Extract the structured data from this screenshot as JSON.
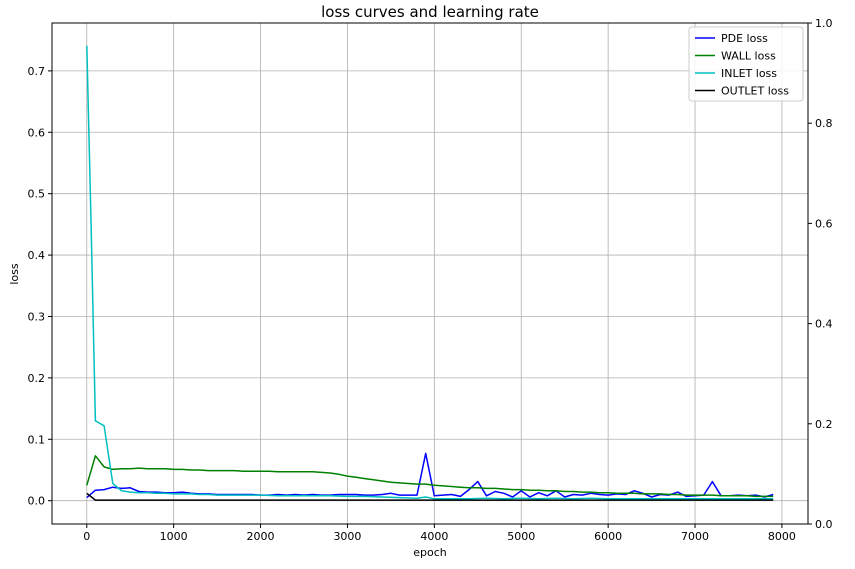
{
  "chart_data": {
    "type": "line",
    "title": "loss curves and learning rate",
    "xlabel": "epoch",
    "ylabel": "loss",
    "xlim": [
      -400,
      8300
    ],
    "ylim": [
      -0.038,
      0.778
    ],
    "y2lim": [
      0.0,
      1.0
    ],
    "x_ticks": [
      0,
      1000,
      2000,
      3000,
      4000,
      5000,
      6000,
      7000,
      8000
    ],
    "y_ticks": [
      0.0,
      0.1,
      0.2,
      0.3,
      0.4,
      0.5,
      0.6,
      0.7
    ],
    "y2_ticks": [
      0.0,
      0.2,
      0.4,
      0.6,
      0.8,
      1.0
    ],
    "grid": true,
    "legend_position": "top-right",
    "series": [
      {
        "name": "PDE loss",
        "color": "#0000ff",
        "x": [
          0,
          100,
          200,
          300,
          400,
          500,
          600,
          700,
          800,
          900,
          1000,
          1100,
          1200,
          1300,
          1400,
          1500,
          1600,
          1700,
          1800,
          1900,
          2000,
          2100,
          2200,
          2300,
          2400,
          2500,
          2600,
          2700,
          2800,
          2900,
          3000,
          3100,
          3200,
          3300,
          3400,
          3500,
          3600,
          3700,
          3800,
          3900,
          4000,
          4100,
          4200,
          4300,
          4400,
          4500,
          4600,
          4700,
          4800,
          4900,
          5000,
          5100,
          5200,
          5300,
          5400,
          5500,
          5600,
          5700,
          5800,
          5900,
          6000,
          6100,
          6200,
          6300,
          6400,
          6500,
          6600,
          6700,
          6800,
          6900,
          7000,
          7100,
          7200,
          7300,
          7400,
          7500,
          7600,
          7700,
          7800,
          7900
        ],
        "values": [
          0.005,
          0.017,
          0.018,
          0.022,
          0.02,
          0.021,
          0.015,
          0.014,
          0.014,
          0.013,
          0.013,
          0.014,
          0.012,
          0.011,
          0.011,
          0.01,
          0.01,
          0.01,
          0.01,
          0.01,
          0.009,
          0.009,
          0.01,
          0.009,
          0.01,
          0.009,
          0.01,
          0.009,
          0.009,
          0.01,
          0.01,
          0.01,
          0.009,
          0.009,
          0.01,
          0.012,
          0.009,
          0.009,
          0.009,
          0.077,
          0.008,
          0.009,
          0.01,
          0.007,
          0.018,
          0.031,
          0.008,
          0.015,
          0.012,
          0.006,
          0.016,
          0.006,
          0.013,
          0.008,
          0.016,
          0.006,
          0.01,
          0.009,
          0.012,
          0.01,
          0.009,
          0.011,
          0.01,
          0.016,
          0.012,
          0.006,
          0.01,
          0.009,
          0.014,
          0.007,
          0.008,
          0.009,
          0.031,
          0.008,
          0.008,
          0.009,
          0.008,
          0.009,
          0.006,
          0.01
        ]
      },
      {
        "name": "WALL loss",
        "color": "#008000",
        "x": [
          0,
          100,
          200,
          300,
          400,
          500,
          600,
          700,
          800,
          900,
          1000,
          1100,
          1200,
          1300,
          1400,
          1500,
          1600,
          1700,
          1800,
          1900,
          2000,
          2100,
          2200,
          2300,
          2400,
          2500,
          2600,
          2700,
          2800,
          2900,
          3000,
          3100,
          3200,
          3300,
          3400,
          3500,
          3600,
          3700,
          3800,
          3900,
          4000,
          4100,
          4200,
          4300,
          4400,
          4500,
          4600,
          4700,
          4800,
          4900,
          5000,
          5100,
          5200,
          5300,
          5400,
          5500,
          5600,
          5700,
          5800,
          5900,
          6000,
          6100,
          6200,
          6300,
          6400,
          6500,
          6600,
          6700,
          6800,
          6900,
          7000,
          7100,
          7200,
          7300,
          7400,
          7500,
          7600,
          7700,
          7800,
          7900
        ],
        "values": [
          0.025,
          0.073,
          0.055,
          0.051,
          0.052,
          0.052,
          0.053,
          0.052,
          0.052,
          0.052,
          0.051,
          0.051,
          0.05,
          0.05,
          0.049,
          0.049,
          0.049,
          0.049,
          0.048,
          0.048,
          0.048,
          0.048,
          0.047,
          0.047,
          0.047,
          0.047,
          0.047,
          0.046,
          0.045,
          0.043,
          0.04,
          0.038,
          0.036,
          0.034,
          0.032,
          0.03,
          0.029,
          0.028,
          0.027,
          0.027,
          0.025,
          0.024,
          0.023,
          0.022,
          0.021,
          0.021,
          0.02,
          0.02,
          0.019,
          0.018,
          0.018,
          0.017,
          0.017,
          0.016,
          0.016,
          0.015,
          0.015,
          0.014,
          0.014,
          0.013,
          0.013,
          0.012,
          0.012,
          0.012,
          0.011,
          0.011,
          0.011,
          0.01,
          0.01,
          0.009,
          0.009,
          0.009,
          0.009,
          0.008,
          0.008,
          0.008,
          0.008,
          0.007,
          0.007,
          0.007
        ]
      },
      {
        "name": "INLET loss",
        "color": "#00bfbf",
        "x": [
          0,
          50,
          100,
          200,
          300,
          400,
          500,
          600,
          700,
          800,
          900,
          1000,
          1100,
          1200,
          1300,
          1400,
          1500,
          1600,
          1700,
          1800,
          1900,
          2000,
          2200,
          2400,
          2600,
          2800,
          3000,
          3200,
          3400,
          3600,
          3800,
          3900,
          4000,
          4200,
          4400,
          4600,
          4800,
          5000,
          5200,
          5400,
          5600,
          5800,
          6000,
          6200,
          6400,
          6600,
          6800,
          7000,
          7200,
          7400,
          7600,
          7800,
          7900
        ],
        "values": [
          0.741,
          0.45,
          0.13,
          0.122,
          0.028,
          0.016,
          0.014,
          0.013,
          0.013,
          0.012,
          0.012,
          0.011,
          0.011,
          0.011,
          0.01,
          0.01,
          0.009,
          0.009,
          0.009,
          0.009,
          0.009,
          0.009,
          0.008,
          0.008,
          0.008,
          0.008,
          0.007,
          0.007,
          0.006,
          0.005,
          0.004,
          0.006,
          0.003,
          0.003,
          0.003,
          0.004,
          0.003,
          0.004,
          0.003,
          0.004,
          0.003,
          0.004,
          0.003,
          0.003,
          0.003,
          0.003,
          0.003,
          0.003,
          0.003,
          0.003,
          0.003,
          0.003,
          0.003
        ]
      },
      {
        "name": "OUTLET loss",
        "color": "#000000",
        "x": [
          0,
          100,
          200,
          400,
          800,
          1600,
          3200,
          6400,
          7900
        ],
        "values": [
          0.012,
          0.001,
          0.001,
          0.001,
          0.001,
          0.001,
          0.001,
          0.001,
          0.001
        ]
      }
    ]
  }
}
